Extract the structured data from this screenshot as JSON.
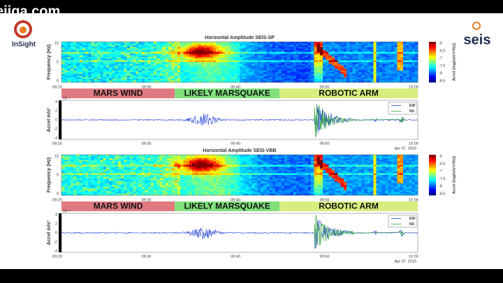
{
  "watermark": "eiiga.com",
  "logos": {
    "left": "InSight",
    "right": "seis"
  },
  "panels": [
    {
      "title": "Horizontal Amplitude SEIS-SP",
      "y_label": "Frequency (Hz)",
      "y_ticks": [
        "10",
        "5",
        "0"
      ],
      "colorbar": {
        "label": "Accel (log(m/s²/√Hz))",
        "ticks": [
          "-6",
          "-6.5",
          "-7",
          "-7.5",
          "-8",
          "-8.5"
        ]
      },
      "x_ticks": [
        "09:20",
        "09:30",
        "09:40",
        "09:50",
        "10:00"
      ],
      "annotations": [
        "MARS WIND",
        "LIKELY MARSQUAKE",
        "ROBOTIC ARM"
      ],
      "waveform": {
        "y_label": "Accel m/s²",
        "exponent": "10⁻⁸",
        "y_ticks": [
          "4",
          "2",
          "0",
          "-2",
          "-4"
        ],
        "legend": [
          "EW",
          "NS"
        ],
        "x_ticks": [
          "09:20",
          "09:30",
          "09:40",
          "09:50",
          "10:00"
        ],
        "date": "Apr 07, 2019"
      }
    },
    {
      "title": "Horizontal Amplitude SEIS-VBB",
      "y_label": "Frequency (Hz)",
      "y_ticks": [
        "10",
        "5",
        "0"
      ],
      "colorbar": {
        "label": "Accel (log(m/s²/√Hz))",
        "ticks": [
          "-6",
          "-6.5",
          "-7",
          "-7.5",
          "-8",
          "-8.5"
        ]
      },
      "x_ticks": [
        "09:20",
        "09:30",
        "09:40",
        "09:50",
        "10:00"
      ],
      "annotations": [
        "MARS WIND",
        "LIKELY MARSQUAKE",
        "ROBOTIC ARM"
      ],
      "waveform": {
        "y_label": "Accel m/s²",
        "exponent": "10⁻⁸",
        "y_ticks": [
          "4",
          "2",
          "0",
          "-2",
          "-4"
        ],
        "legend": [
          "EW",
          "NS"
        ],
        "x_ticks": [
          "09:20",
          "09:30",
          "09:40",
          "09:50",
          "10:00"
        ],
        "date": "Apr 07, 2019"
      }
    }
  ]
}
